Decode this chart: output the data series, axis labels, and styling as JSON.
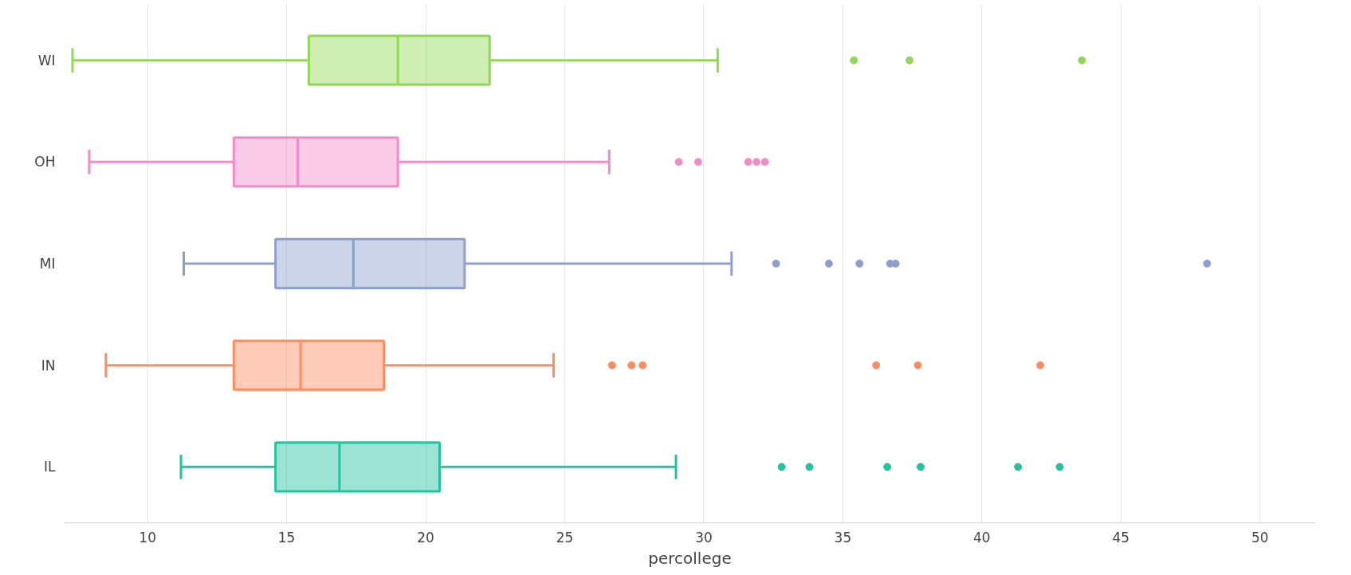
{
  "chart_data": {
    "type": "box",
    "orientation": "horizontal",
    "categories": [
      "WI",
      "OH",
      "MI",
      "IN",
      "IL"
    ],
    "colors": [
      "#92d857",
      "#f28cc8",
      "#8da0cb",
      "#fc8d62",
      "#25c2a0"
    ],
    "boxes": [
      {
        "low": 7.3,
        "q1": 15.8,
        "median": 19.0,
        "q3": 22.3,
        "high": 30.5,
        "outliers": [
          35.4,
          37.4,
          43.6
        ]
      },
      {
        "low": 7.9,
        "q1": 13.1,
        "median": 15.4,
        "q3": 19.0,
        "high": 26.6,
        "outliers": [
          29.1,
          29.8,
          31.6,
          31.9,
          32.2
        ]
      },
      {
        "low": 11.3,
        "q1": 14.6,
        "median": 17.4,
        "q3": 21.4,
        "high": 31.0,
        "outliers": [
          32.6,
          34.5,
          35.6,
          36.7,
          36.9,
          48.1
        ]
      },
      {
        "low": 8.5,
        "q1": 13.1,
        "median": 15.5,
        "q3": 18.5,
        "high": 24.6,
        "outliers": [
          26.7,
          27.4,
          27.8,
          36.2,
          37.7,
          42.1
        ]
      },
      {
        "low": 11.2,
        "q1": 14.6,
        "median": 16.9,
        "q3": 20.5,
        "high": 29.0,
        "outliers": [
          32.8,
          33.8,
          36.6,
          37.8,
          41.3,
          42.8
        ]
      }
    ],
    "xlabel": "percollege",
    "xlim": [
      7,
      52
    ],
    "xticks": [
      10,
      15,
      20,
      25,
      30,
      35,
      40,
      45,
      50
    ],
    "grid": "x"
  }
}
